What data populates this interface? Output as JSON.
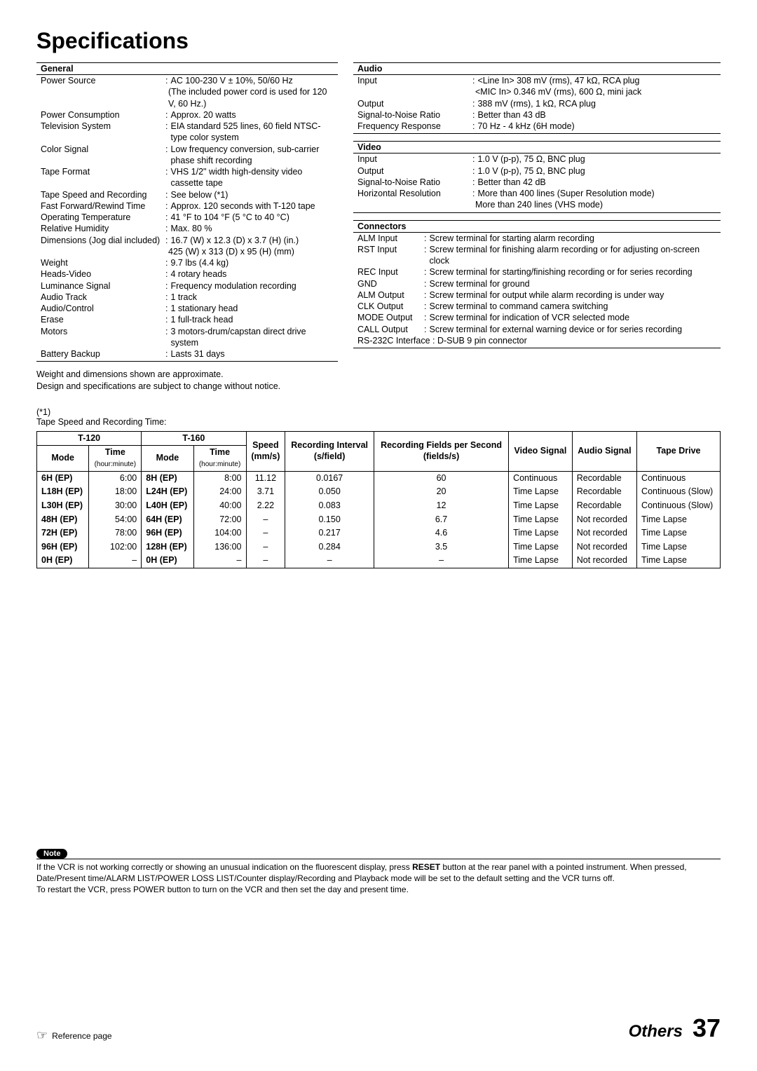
{
  "title": "Specifications",
  "general": {
    "header": "General",
    "rows": [
      {
        "label": "Power Source",
        "value": "AC 100-230 V ± 10%, 50/60 Hz"
      },
      {
        "label": "",
        "value": "(The included power cord is used for 120 V, 60 Hz.)",
        "noColon": true
      },
      {
        "label": "Power Consumption",
        "value": "Approx. 20 watts"
      },
      {
        "label": "Television System",
        "value": "EIA standard 525 lines, 60 field NTSC-type color system"
      },
      {
        "label": "Color Signal",
        "value": "Low frequency conversion, sub-carrier phase shift recording"
      },
      {
        "label": "Tape Format",
        "value": "VHS 1/2\" width high-density video cassette tape"
      },
      {
        "label": "Tape Speed and Recording",
        "value": "See below (*1)"
      },
      {
        "label": "Fast Forward/Rewind Time",
        "value": "Approx. 120 seconds with T-120 tape"
      },
      {
        "label": "Operating Temperature",
        "value": "41 °F to 104 °F (5 °C to 40 °C)"
      },
      {
        "label": "Relative Humidity",
        "value": "Max. 80 %"
      },
      {
        "label": "Dimensions (Jog dial included)",
        "value": "16.7 (W) x 12.3 (D) x 3.7 (H) (in.)"
      },
      {
        "label": "",
        "value": "425 (W) x 313 (D) x 95 (H) (mm)",
        "noColon": true
      },
      {
        "label": "Weight",
        "value": "9.7 lbs (4.4 kg)"
      },
      {
        "label": "Heads-Video",
        "value": "4 rotary heads"
      },
      {
        "label": "Luminance Signal",
        "value": "Frequency modulation recording"
      },
      {
        "label": "Audio Track",
        "value": "1 track"
      },
      {
        "label": "Audio/Control",
        "value": "1 stationary head"
      },
      {
        "label": "Erase",
        "value": "1 full-track head"
      },
      {
        "label": "Motors",
        "value": "3 motors-drum/capstan direct drive system"
      },
      {
        "label": "Battery Backup",
        "value": "Lasts 31 days"
      }
    ]
  },
  "audio": {
    "header": "Audio",
    "rows": [
      {
        "label": "Input",
        "value": "<Line In> 308 mV (rms), 47 kΩ, RCA plug"
      },
      {
        "label": "",
        "value": "<MIC In> 0.346 mV (rms), 600 Ω, mini jack",
        "noColon": true
      },
      {
        "label": "Output",
        "value": "388 mV (rms), 1 kΩ, RCA plug"
      },
      {
        "label": "Signal-to-Noise Ratio",
        "value": "Better than 43 dB"
      },
      {
        "label": "Frequency Response",
        "value": "70 Hz - 4 kHz (6H mode)"
      }
    ]
  },
  "video": {
    "header": "Video",
    "rows": [
      {
        "label": "Input",
        "value": "1.0 V (p-p), 75 Ω, BNC plug"
      },
      {
        "label": "Output",
        "value": "1.0 V (p-p), 75 Ω, BNC plug"
      },
      {
        "label": "Signal-to-Noise Ratio",
        "value": "Better than 42 dB"
      },
      {
        "label": "Horizontal Resolution",
        "value": "More than 400 lines (Super Resolution mode)"
      },
      {
        "label": "",
        "value": "More than 240 lines (VHS mode)",
        "noColon": true
      }
    ]
  },
  "connectors": {
    "header": "Connectors",
    "rows": [
      {
        "label": "ALM Input",
        "value": "Screw terminal for starting alarm recording"
      },
      {
        "label": "RST Input",
        "value": "Screw terminal for finishing alarm recording or for adjusting on-screen clock"
      },
      {
        "label": "REC Input",
        "value": "Screw terminal for starting/finishing recording or for series recording"
      },
      {
        "label": "GND",
        "value": "Screw terminal for ground"
      },
      {
        "label": "ALM Output",
        "value": "Screw terminal for output while alarm recording is under way"
      },
      {
        "label": "CLK Output",
        "value": "Screw terminal to command camera switching"
      },
      {
        "label": "MODE Output",
        "value": "Screw terminal for indication of VCR selected mode"
      },
      {
        "label": "CALL Output",
        "value": "Screw terminal for external warning device or for series recording"
      },
      {
        "label": "RS-232C Interface",
        "value": "D-SUB 9 pin connector",
        "inline": true
      }
    ]
  },
  "notes1": "Weight and dimensions shown are approximate.",
  "notes2": "Design and specifications are subject to change without notice.",
  "footnoteMark": "(*1)",
  "footnoteTitle": "Tape Speed and Recording Time:",
  "table": {
    "group1": "T-120",
    "group2": "T-160",
    "headers": {
      "mode": "Mode",
      "time": "Time",
      "timeSub": "(hour:minute)",
      "speed": "Speed",
      "speedSub": "(mm/s)",
      "interval": "Recording Interval",
      "intervalSub": "(s/field)",
      "fields": "Recording Fields per Second",
      "fieldsSub": "(fields/s)",
      "videoSig": "Video Signal",
      "audioSig": "Audio Signal",
      "tapeDrive": "Tape Drive"
    },
    "rows": [
      {
        "m1": "6H (EP)",
        "t1": "6:00",
        "m2": "8H (EP)",
        "t2": "8:00",
        "spd": "11.12",
        "intv": "0.0167",
        "fps": "60",
        "vs": "Continuous",
        "as": "Recordable",
        "td": "Continuous"
      },
      {
        "m1": "L18H (EP)",
        "t1": "18:00",
        "m2": "L24H (EP)",
        "t2": "24:00",
        "spd": "3.71",
        "intv": "0.050",
        "fps": "20",
        "vs": "Time Lapse",
        "as": "Recordable",
        "td": "Continuous (Slow)"
      },
      {
        "m1": "L30H (EP)",
        "t1": "30:00",
        "m2": "L40H (EP)",
        "t2": "40:00",
        "spd": "2.22",
        "intv": "0.083",
        "fps": "12",
        "vs": "Time Lapse",
        "as": "Recordable",
        "td": "Continuous (Slow)"
      },
      {
        "m1": "48H (EP)",
        "t1": "54:00",
        "m2": "64H (EP)",
        "t2": "72:00",
        "spd": "–",
        "intv": "0.150",
        "fps": "6.7",
        "vs": "Time Lapse",
        "as": "Not recorded",
        "td": "Time Lapse"
      },
      {
        "m1": "72H (EP)",
        "t1": "78:00",
        "m2": "96H (EP)",
        "t2": "104:00",
        "spd": "–",
        "intv": "0.217",
        "fps": "4.6",
        "vs": "Time Lapse",
        "as": "Not recorded",
        "td": "Time Lapse"
      },
      {
        "m1": "96H (EP)",
        "t1": "102:00",
        "m2": "128H (EP)",
        "t2": "136:00",
        "spd": "–",
        "intv": "0.284",
        "fps": "3.5",
        "vs": "Time Lapse",
        "as": "Not recorded",
        "td": "Time Lapse"
      },
      {
        "m1": "0H (EP)",
        "t1": "–",
        "m2": "0H (EP)",
        "t2": "–",
        "spd": "–",
        "intv": "–",
        "fps": "–",
        "vs": "Time Lapse",
        "as": "Not recorded",
        "td": "Time Lapse"
      }
    ]
  },
  "notePill": "Note",
  "noteBody1": "If the VCR is not working correctly or showing an unusual indication on the fluorescent display, press ",
  "noteReset": "RESET",
  "noteBody2": " button at the rear panel with a pointed instrument.  When pressed, Date/Present time/ALARM LIST/POWER LOSS LIST/Counter display/Recording and Playback mode will be set to the default setting and the VCR turns off.",
  "noteBody3": "To restart the VCR, press POWER button to turn on the VCR and then set the day and present time.",
  "refPage": "Reference page",
  "othersLabel": "Others",
  "pageNumber": "37"
}
